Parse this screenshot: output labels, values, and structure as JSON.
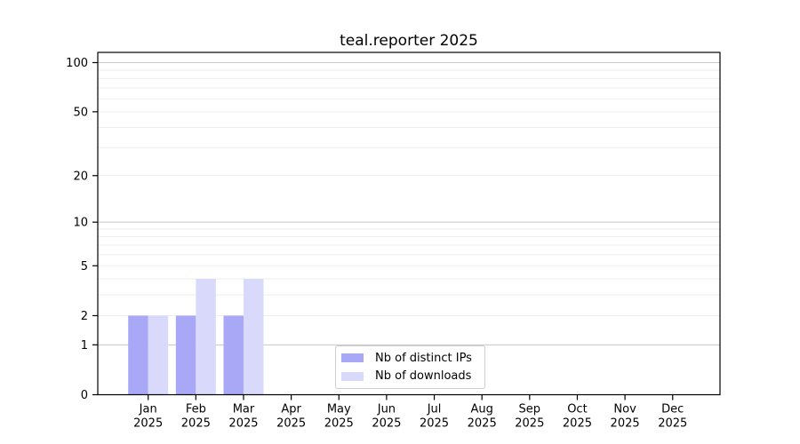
{
  "figure": {
    "title": "teal.reporter 2025"
  },
  "chart_data": {
    "type": "bar",
    "title": "teal.reporter 2025",
    "categories": [
      "Jan 2025",
      "Feb 2025",
      "Mar 2025",
      "Apr 2025",
      "May 2025",
      "Jun 2025",
      "Jul 2025",
      "Aug 2025",
      "Sep 2025",
      "Oct 2025",
      "Nov 2025",
      "Dec 2025"
    ],
    "series": [
      {
        "name": "Nb of distinct IPs",
        "color": "#a8a8f7",
        "values": [
          2,
          2,
          2,
          0,
          0,
          0,
          0,
          0,
          0,
          0,
          0,
          0
        ]
      },
      {
        "name": "Nb of downloads",
        "color": "#d9d9fb",
        "values": [
          2,
          4,
          4,
          0,
          0,
          0,
          0,
          0,
          0,
          0,
          0,
          0
        ]
      }
    ],
    "xlabel": "",
    "ylabel": "",
    "yscale": "log1p",
    "ylim": [
      0,
      115
    ],
    "y_tick_values": [
      0,
      1,
      2,
      5,
      10,
      20,
      50,
      100
    ],
    "y_tick_labels": [
      "0",
      "1",
      "2",
      "5",
      "10",
      "20",
      "50",
      "100"
    ],
    "y_gridlines_major": [
      1,
      10,
      100
    ],
    "y_gridlines_minor": [
      2,
      3,
      4,
      5,
      6,
      7,
      8,
      9,
      20,
      30,
      40,
      50,
      60,
      70,
      80,
      90
    ],
    "grid": "horizontal",
    "legend_position": "bottom-center-inside"
  },
  "colors": {
    "distinct_ips": "#a8a8f7",
    "downloads": "#d9d9fb",
    "gridline_major": "#c6c6c6",
    "gridline_minor": "#eeeeee",
    "axis": "#000000",
    "text": "#000000",
    "legend_border": "#cccccc",
    "background": "#ffffff"
  }
}
